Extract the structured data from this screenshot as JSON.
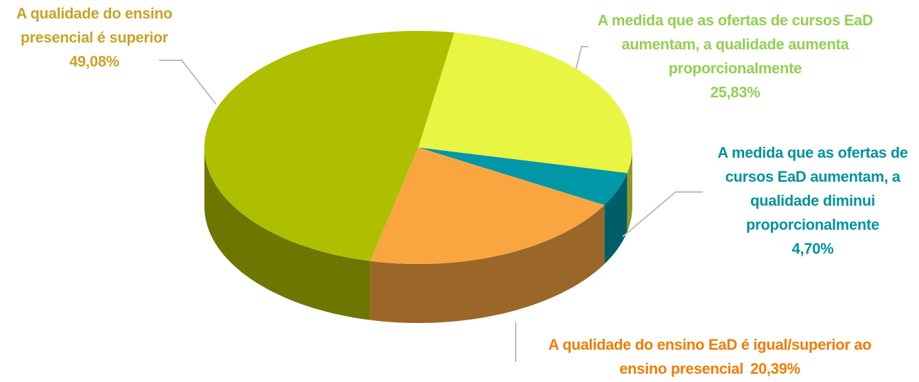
{
  "chart_data": {
    "type": "pie",
    "categories": [
      "A qualidade do ensino presencial é superior",
      "A medida que as ofertas de cursos EaD aumentam, a qualidade aumenta proporcionalmente",
      "A medida que as ofertas de cursos EaD aumentam, a qualidade diminui proporcionalmente",
      "A qualidade do ensino EaD é igual/superior ao ensino presencial"
    ],
    "values": [
      49.08,
      25.83,
      4.7,
      20.39
    ],
    "value_labels": [
      "49,08%",
      "25,83%",
      "4,70%",
      "20,39%"
    ],
    "colors": [
      "#aebf00",
      "#e8f542",
      "#0097a7",
      "#f9a640"
    ],
    "label_colors": [
      "#c9a227",
      "#92d050",
      "#00929f",
      "#f07c00"
    ]
  }
}
